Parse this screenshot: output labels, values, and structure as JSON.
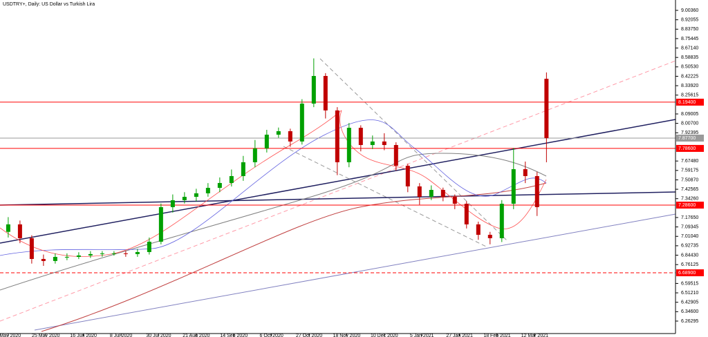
{
  "chart_data": {
    "type": "candlestick",
    "title": "USDTRY+, Daily:  US Dollar vs Turkish Lira",
    "up_color": "#00a000",
    "down_color": "#c00000",
    "x": [
      0,
      5,
      10,
      15,
      20,
      25,
      30,
      35,
      40,
      45,
      50,
      55,
      60,
      65,
      70,
      75,
      80,
      85,
      90,
      95,
      100,
      105,
      110,
      115,
      120,
      125,
      130,
      135,
      140,
      145,
      150,
      155,
      160,
      165,
      170,
      175,
      180,
      185,
      190,
      195,
      200,
      205,
      210,
      215,
      220,
      225,
      229
    ],
    "open": [
      7.05,
      7.116,
      6.994,
      6.811,
      6.793,
      6.829,
      6.829,
      6.842,
      6.854,
      6.86,
      6.86,
      6.854,
      6.872,
      6.963,
      7.268,
      7.329,
      7.359,
      7.39,
      7.438,
      7.481,
      7.542,
      7.664,
      7.786,
      7.907,
      7.938,
      7.847,
      8.181,
      8.425,
      8.121,
      7.664,
      7.968,
      7.816,
      7.847,
      7.816,
      7.633,
      7.451,
      7.359,
      7.42,
      7.359,
      7.298,
      7.116,
      7.024,
      6.994,
      7.298,
      7.603,
      7.542,
      8.4
    ],
    "high": [
      7.18,
      7.15,
      7.02,
      6.85,
      6.86,
      6.86,
      6.87,
      6.88,
      6.88,
      6.88,
      6.88,
      6.9,
      7.0,
      7.3,
      7.38,
      7.4,
      7.43,
      7.48,
      7.53,
      7.6,
      7.72,
      7.86,
      7.95,
      7.97,
      7.96,
      8.22,
      8.58,
      8.45,
      8.15,
      8.01,
      7.99,
      7.9,
      7.92,
      7.84,
      7.65,
      7.48,
      7.46,
      7.44,
      7.38,
      7.32,
      7.14,
      7.05,
      7.33,
      7.79,
      7.67,
      7.58,
      8.456
    ],
    "low": [
      7.0,
      6.95,
      6.77,
      6.75,
      6.77,
      6.8,
      6.81,
      6.82,
      6.83,
      6.84,
      6.83,
      6.83,
      6.85,
      6.94,
      7.22,
      7.3,
      7.32,
      7.36,
      7.4,
      7.45,
      7.5,
      7.62,
      7.75,
      7.88,
      7.8,
      7.82,
      8.15,
      8.05,
      7.55,
      7.62,
      7.76,
      7.78,
      7.77,
      7.59,
      7.4,
      7.29,
      7.33,
      7.32,
      7.25,
      7.08,
      6.98,
      6.94,
      6.96,
      7.25,
      7.48,
      7.19,
      7.664
    ],
    "close": [
      7.116,
      6.994,
      6.811,
      6.793,
      6.829,
      6.829,
      6.842,
      6.854,
      6.86,
      6.86,
      6.854,
      6.872,
      6.963,
      7.268,
      7.329,
      7.359,
      7.39,
      7.438,
      7.481,
      7.542,
      7.664,
      7.786,
      7.907,
      7.938,
      7.847,
      8.181,
      8.425,
      8.121,
      7.664,
      7.968,
      7.816,
      7.847,
      7.816,
      7.633,
      7.451,
      7.359,
      7.42,
      7.359,
      7.298,
      7.116,
      7.024,
      6.994,
      7.298,
      7.603,
      7.542,
      7.268,
      7.877
    ],
    "xlim": [
      -3.5,
      283.9
    ],
    "xticks": [
      {
        "value": 0,
        "label": "1 May 2020"
      },
      {
        "value": 16,
        "label": "25 May 2020"
      },
      {
        "value": 32,
        "label": "16 Jun 2020"
      },
      {
        "value": 48,
        "label": "8 Jul 2020"
      },
      {
        "value": 64,
        "label": "30 Jul 2020"
      },
      {
        "value": 80,
        "label": "21 Aug 2020"
      },
      {
        "value": 96,
        "label": "14 Sep 2020"
      },
      {
        "value": 112,
        "label": "6 Oct 2020"
      },
      {
        "value": 128,
        "label": "27 Oct 2020"
      },
      {
        "value": 144,
        "label": "18 Nov 2020"
      },
      {
        "value": 160,
        "label": "10 Dec 2020"
      },
      {
        "value": 176,
        "label": "5 Jan 2021"
      },
      {
        "value": 192,
        "label": "27 Jan 2021"
      },
      {
        "value": 208,
        "label": "18 Feb 2021"
      },
      {
        "value": 224,
        "label": "12 Mar 2021"
      }
    ],
    "ylim": [
      6.147,
      9.095
    ],
    "yticks": [
      {
        "value": 9.0036,
        "label": "9.00360"
      },
      {
        "value": 8.92055,
        "label": "8.92055"
      },
      {
        "value": 8.8375,
        "label": "8.83750"
      },
      {
        "value": 8.75445,
        "label": "8.75445"
      },
      {
        "value": 8.6714,
        "label": "8.67140"
      },
      {
        "value": 8.58835,
        "label": "8.58835"
      },
      {
        "value": 8.5053,
        "label": "8.50530"
      },
      {
        "value": 8.42225,
        "label": "8.42225"
      },
      {
        "value": 8.3392,
        "label": "8.33920"
      },
      {
        "value": 8.25615,
        "label": "8.25615"
      },
      {
        "value": 8.09005,
        "label": "8.09005"
      },
      {
        "value": 8.007,
        "label": "8.00700"
      },
      {
        "value": 7.92395,
        "label": "7.92395"
      },
      {
        "value": 7.6748,
        "label": "7.67480"
      },
      {
        "value": 7.59175,
        "label": "7.59175"
      },
      {
        "value": 7.5087,
        "label": "7.50870"
      },
      {
        "value": 7.42565,
        "label": "7.42565"
      },
      {
        "value": 7.3426,
        "label": "7.34260"
      },
      {
        "value": 7.1765,
        "label": "7.17650"
      },
      {
        "value": 7.09345,
        "label": "7.09345"
      },
      {
        "value": 7.0104,
        "label": "7.01040"
      },
      {
        "value": 6.92735,
        "label": "6.92735"
      },
      {
        "value": 6.8443,
        "label": "6.84430"
      },
      {
        "value": 6.76125,
        "label": "6.76125"
      },
      {
        "value": 6.59515,
        "label": "6.59515"
      },
      {
        "value": 6.5121,
        "label": "6.51210"
      },
      {
        "value": 6.42905,
        "label": "6.42905"
      },
      {
        "value": 6.346,
        "label": "6.34600"
      },
      {
        "value": 6.26295,
        "label": "6.26295"
      }
    ],
    "hlines": [
      {
        "value": 8.194,
        "label": "8.19400",
        "color": "#ff0000"
      },
      {
        "value": 7.877,
        "label": "7.87700",
        "color": "#9a9a9a"
      },
      {
        "value": 7.786,
        "label": "7.78600",
        "color": "#ff0000"
      },
      {
        "value": 7.286,
        "label": "7.28600",
        "color": "#ff0000"
      },
      {
        "value": 6.689,
        "label": "6.68900",
        "color": "#ff0000",
        "dashed": true
      }
    ]
  }
}
